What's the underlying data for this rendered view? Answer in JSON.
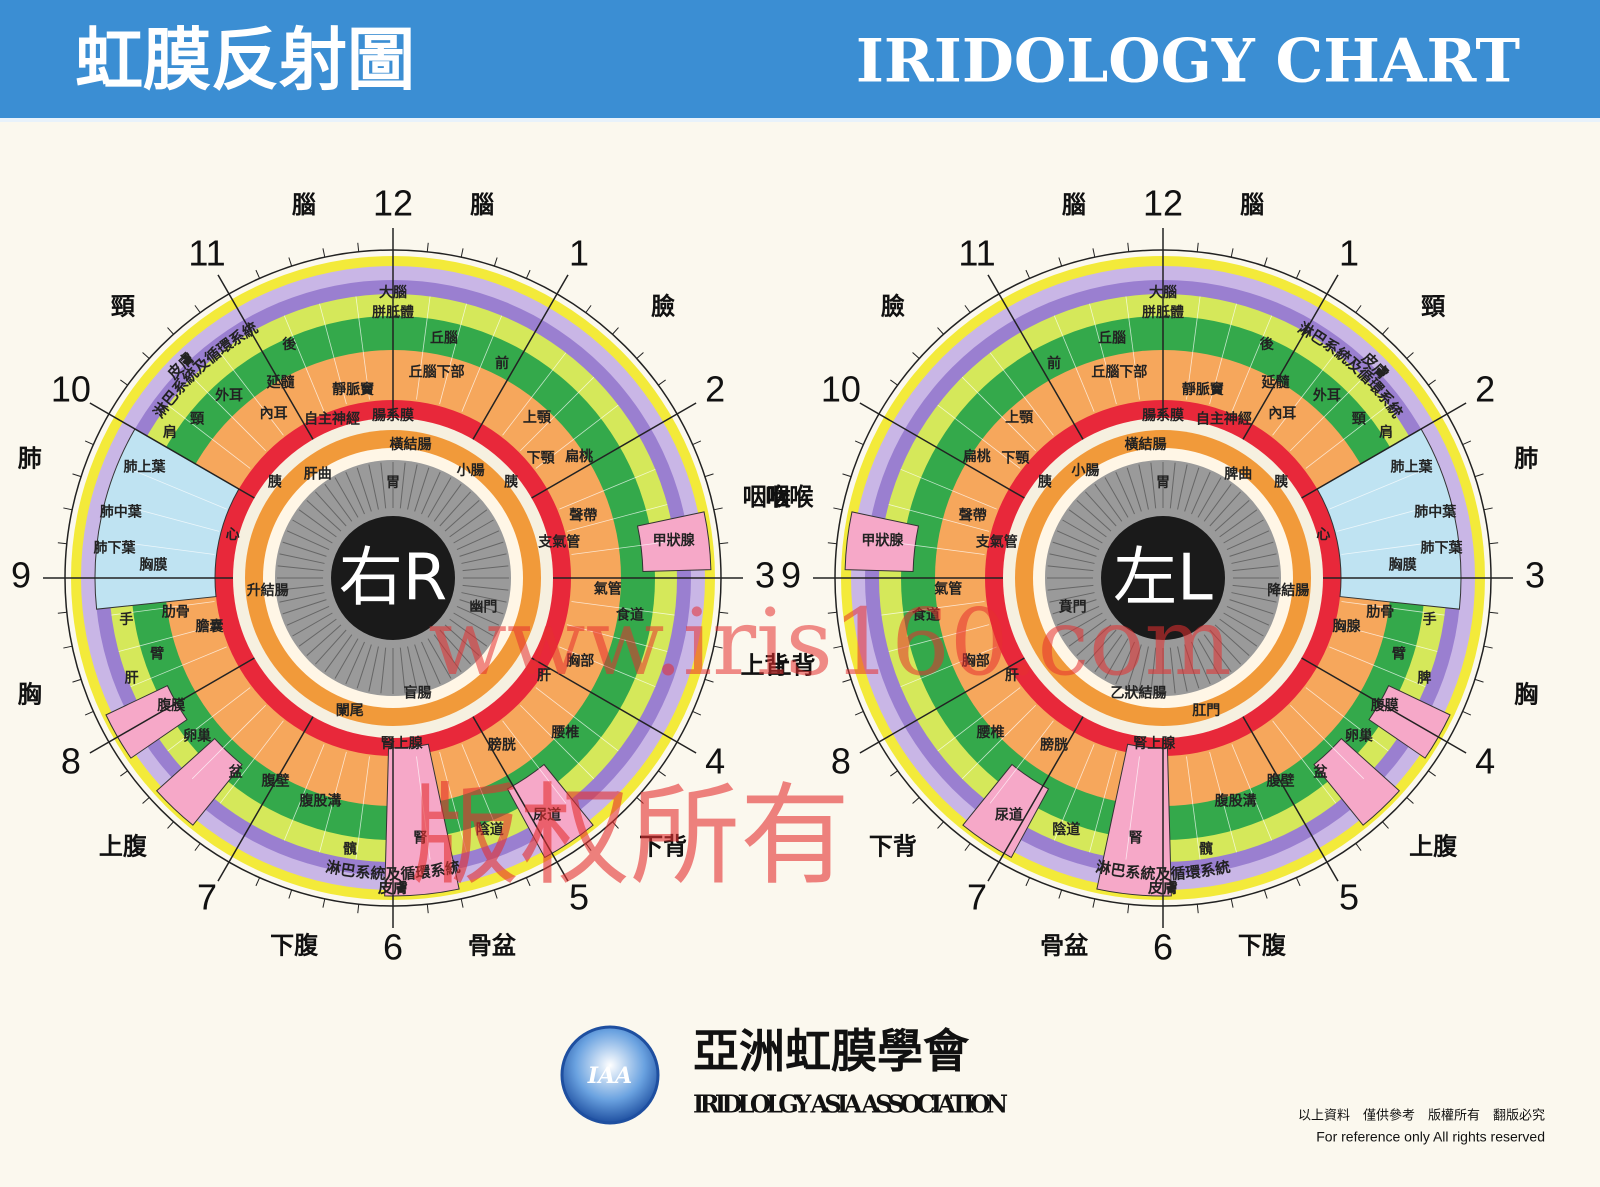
{
  "header": {
    "title_zh": "虹膜反射圖",
    "title_en": "IRIDOLOGY CHART"
  },
  "eyes": [
    {
      "center_label": "右R",
      "hours": [
        "12",
        "1",
        "2",
        "3",
        "4",
        "5",
        "6",
        "7",
        "8",
        "9",
        "10",
        "11"
      ],
      "regions": [
        "腦",
        "腦",
        "臉",
        "咽喉",
        "上背",
        "下背",
        "骨盆",
        "下腹",
        "上腹",
        "胸",
        "肺",
        "頸"
      ],
      "rings": {
        "lymph": "淋巴系統及循環系統",
        "skin": "皮膚"
      },
      "zones": [
        "大腦",
        "胼胝體",
        "丘腦",
        "丘腦下部",
        "前",
        "後",
        "延髓",
        "外耳",
        "內耳",
        "頸",
        "肩",
        "靜脈竇",
        "自主神經",
        "上顎",
        "下顎",
        "扁桃",
        "聲帶",
        "甲狀腺",
        "支氣管",
        "氣管",
        "食道",
        "胸部",
        "肝",
        "腰椎",
        "膀胱",
        "尿道",
        "陰道",
        "腎",
        "腎上腺",
        "闌尾",
        "盲腸",
        "髖",
        "腹股溝",
        "腹壁",
        "盆",
        "卵巢",
        "腹膜",
        "肝",
        "膽囊",
        "臂",
        "手",
        "肋骨",
        "胸膜",
        "肺上葉",
        "肺中葉",
        "肺下葉",
        "心",
        "胰",
        "胰",
        "胃",
        "幽門",
        "橫結腸",
        "腸系膜",
        "升結腸",
        "肝曲",
        "小腸"
      ]
    },
    {
      "center_label": "左L",
      "hours": [
        "12",
        "1",
        "2",
        "3",
        "4",
        "5",
        "6",
        "7",
        "8",
        "9",
        "10",
        "11"
      ],
      "regions": [
        "腦",
        "腦",
        "臉",
        "咽喉",
        "上背",
        "下背",
        "骨盆",
        "下腹",
        "上腹",
        "胸",
        "肺",
        "頸"
      ],
      "rings": {
        "lymph": "淋巴系統及循環系統",
        "skin": "皮膚"
      },
      "zones": [
        "大腦",
        "胼胝體",
        "丘腦",
        "丘腦下部",
        "前",
        "後",
        "延髓",
        "外耳",
        "內耳",
        "頸",
        "肩",
        "靜脈竇",
        "自主神經",
        "上顎",
        "下顎",
        "扁桃",
        "聲帶",
        "甲狀腺",
        "支氣管",
        "氣管",
        "食道",
        "胸部",
        "肝",
        "腰椎",
        "膀胱",
        "尿道",
        "陰道",
        "腎",
        "腎上腺",
        "肛門",
        "乙狀結腸",
        "髖",
        "腹股溝",
        "腹壁",
        "盆",
        "卵巢",
        "腹膜",
        "脾",
        "胸腺",
        "臂",
        "手",
        "肋骨",
        "胸膜",
        "肺上葉",
        "肺中葉",
        "肺下葉",
        "心",
        "胰",
        "胰",
        "胃",
        "賁門",
        "橫結腸",
        "腸系膜",
        "降結腸",
        "脾曲",
        "小腸"
      ]
    }
  ],
  "watermark": {
    "url": "www.iris160.com",
    "rights": "版权所有"
  },
  "footer": {
    "logo": "IAA",
    "org_zh": "亞洲虹膜學會",
    "org_en": "IRIDLOLGY ASIA ASSOCIATION",
    "note_zh": "以上資料　僅供參考　版權所有　翻版必究",
    "note_en": "For reference only   All rights reserved"
  }
}
